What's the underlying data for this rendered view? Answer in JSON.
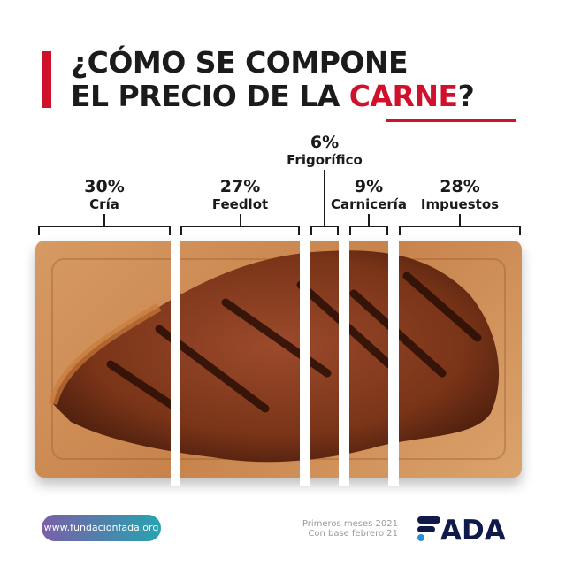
{
  "title": {
    "line1": "¿CÓMO SE COMPONE",
    "line2_prefix": "EL PRECIO DE LA ",
    "line2_highlight": "CARNE",
    "line2_suffix": "?"
  },
  "colors": {
    "accent": "#d0112b",
    "text": "#1b1b1b",
    "logo": "#0f1a4a",
    "logo_dot": "#2a8fd8"
  },
  "chart_data": {
    "type": "bar",
    "orientation": "horizontal-stacked",
    "categories": [
      "Cría",
      "Feedlot",
      "Frigorífico",
      "Carnicería",
      "Impuestos"
    ],
    "values": [
      30,
      27,
      6,
      9,
      28
    ],
    "labels": [
      "30%",
      "27%",
      "6%",
      "9%",
      "28%"
    ],
    "unit": "%"
  },
  "footer": {
    "url": "www.fundacionfada.org",
    "note_line1": "Primeros meses 2021",
    "note_line2": "Con base febrero 21",
    "logo_text": "FADA"
  }
}
